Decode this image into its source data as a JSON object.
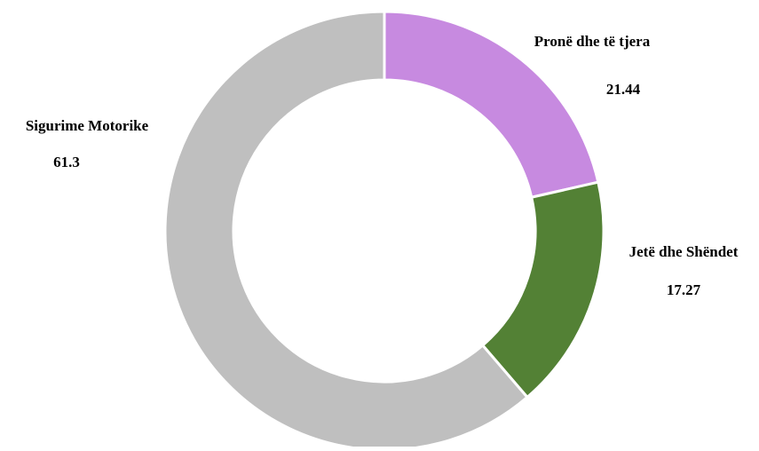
{
  "chart_data": {
    "type": "pie",
    "variant": "donut",
    "title": "",
    "legend": "none",
    "slices": [
      {
        "name": "Pronë dhe të tjera",
        "value": 21.44,
        "value_label": "21.44",
        "color": "#c78ae0"
      },
      {
        "name": "Jetë dhe Shëndet",
        "value": 17.27,
        "value_label": "17.27",
        "color": "#538135"
      },
      {
        "name": "Sigurime Motorike",
        "value": 61.3,
        "value_label": "61.3",
        "color": "#bfbfbf"
      }
    ],
    "start_angle": "12 o'clock",
    "direction": "clockwise",
    "separator_color": "#ffffff"
  }
}
